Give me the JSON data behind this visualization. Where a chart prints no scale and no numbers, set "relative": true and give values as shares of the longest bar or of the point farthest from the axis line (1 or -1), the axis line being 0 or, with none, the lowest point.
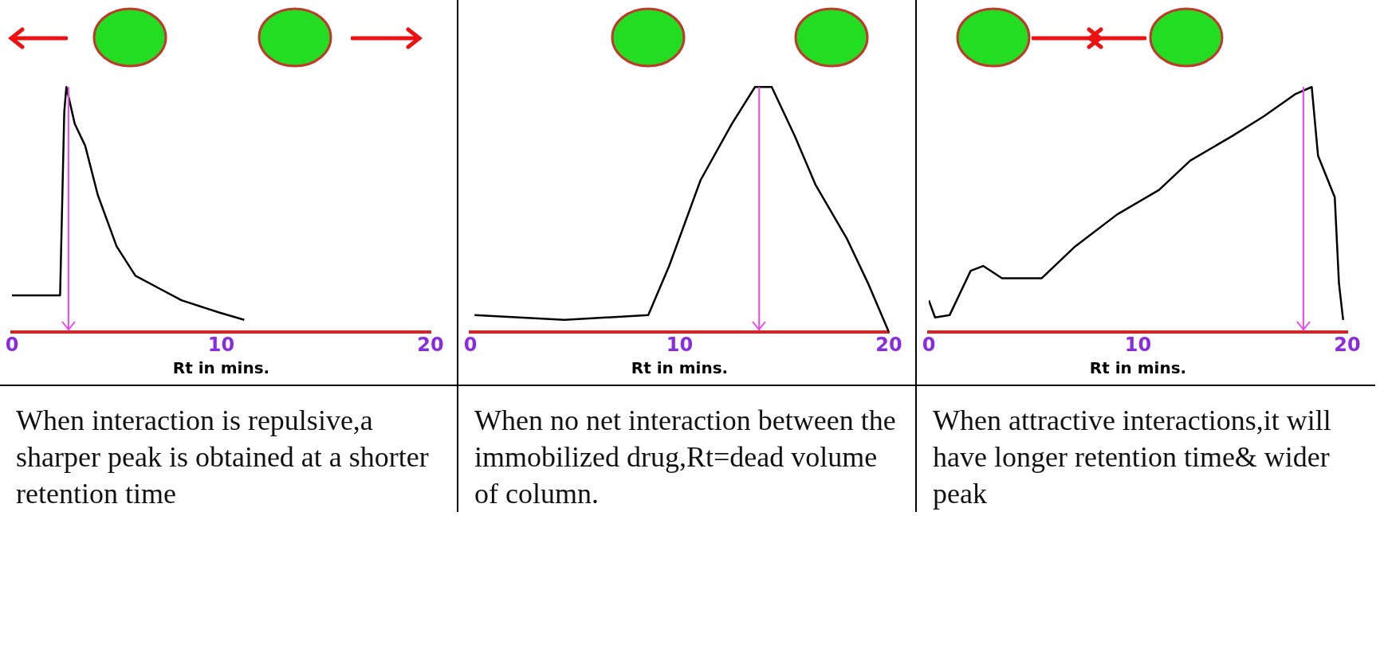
{
  "chart_data": [
    {
      "type": "line",
      "relative": true,
      "xlim": [
        0,
        20
      ],
      "xticks": [
        0,
        10,
        20
      ],
      "xlabel": "Rt in mins.",
      "grid": false,
      "legend": false,
      "marker": "none",
      "series": [
        {
          "color": "#000000",
          "x": [
            0,
            2.3,
            2.5,
            2.6,
            3.0,
            3.5,
            4.1,
            5.0,
            5.9,
            7.0,
            8.1,
            9.9,
            11.1
          ],
          "values": [
            0.15,
            0.15,
            0.9,
            1.0,
            0.85,
            0.76,
            0.56,
            0.35,
            0.23,
            0.18,
            0.13,
            0.08,
            0.05
          ]
        }
      ],
      "ref_lines": [
        {
          "axis": "x",
          "value": 2.7,
          "color": "#ee44ee"
        }
      ],
      "annotations": [
        "When interaction is repulsive,a sharper peak is obtained at a shorter retention time"
      ]
    },
    {
      "type": "line",
      "relative": true,
      "xlim": [
        0,
        20
      ],
      "xticks": [
        0,
        10,
        20
      ],
      "xlabel": "Rt in mins.",
      "grid": false,
      "legend": false,
      "marker": "none",
      "series": [
        {
          "color": "#000000",
          "x": [
            0.2,
            4.5,
            8.5,
            9.5,
            11,
            12.5,
            13.6,
            14.4,
            15.5,
            16.5,
            18,
            19,
            20
          ],
          "values": [
            0.07,
            0.05,
            0.07,
            0.27,
            0.62,
            0.85,
            1.0,
            1.0,
            0.8,
            0.6,
            0.38,
            0.2,
            0.0
          ]
        }
      ],
      "ref_lines": [
        {
          "axis": "x",
          "value": 13.8,
          "color": "#ee44ee"
        }
      ],
      "annotations": [
        "When no net interaction between the immobilized drug,Rt=dead volume of column."
      ]
    },
    {
      "type": "line",
      "relative": true,
      "xlim": [
        0,
        20
      ],
      "xticks": [
        0,
        10,
        20
      ],
      "xlabel": "Rt in mins.",
      "grid": false,
      "legend": false,
      "marker": "none",
      "series": [
        {
          "color": "#000000",
          "x": [
            0,
            0.3,
            1,
            2,
            2.6,
            3.5,
            5.4,
            7,
            9,
            11,
            12.5,
            14.5,
            16,
            17.5,
            18.3,
            18.6,
            19.4,
            19.6,
            19.8
          ],
          "values": [
            0.13,
            0.06,
            0.07,
            0.25,
            0.27,
            0.22,
            0.22,
            0.35,
            0.48,
            0.58,
            0.7,
            0.8,
            0.88,
            0.97,
            1.0,
            0.72,
            0.55,
            0.2,
            0.05
          ]
        }
      ],
      "ref_lines": [
        {
          "axis": "x",
          "value": 17.9,
          "color": "#ee44ee"
        }
      ],
      "annotations": [
        "When attractive interactions,it will have longer retention time& wider peak"
      ]
    }
  ]
}
